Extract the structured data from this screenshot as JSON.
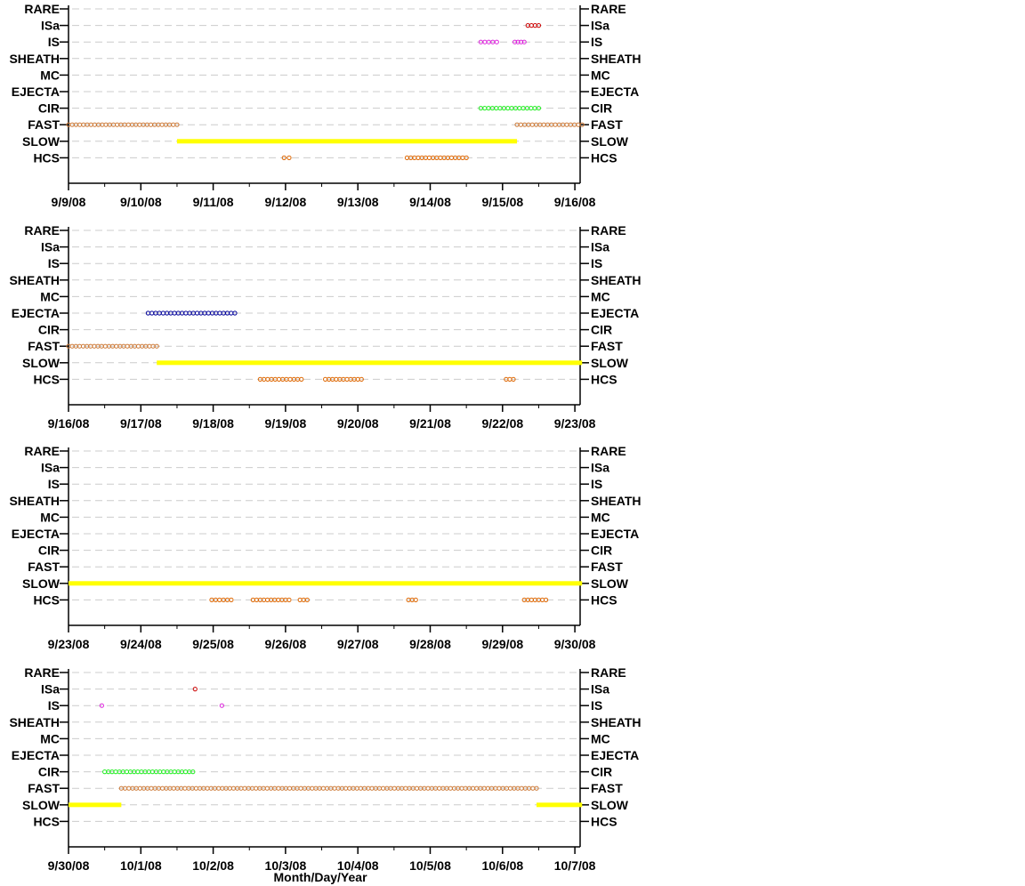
{
  "categories": [
    "RARE",
    "ISa",
    "IS",
    "SHEATH",
    "MC",
    "EJECTA",
    "CIR",
    "FAST",
    "SLOW",
    "HCS"
  ],
  "xlabel": "Month/Day/Year",
  "colors": {
    "SLOW": "#ffff00",
    "FAST": "#cc7733",
    "HCS": "#dd6600",
    "CIR": "#22ee22",
    "IS": "#dd22dd",
    "ISa": "#cc0000",
    "EJECTA": "#000099",
    "grid": "#cccccc"
  },
  "chart_data": [
    {
      "type": "scatter",
      "ylabels": [
        "RARE",
        "ISa",
        "IS",
        "SHEATH",
        "MC",
        "EJECTA",
        "CIR",
        "FAST",
        "SLOW",
        "HCS"
      ],
      "xlim": [
        0,
        7.1
      ],
      "x_tick_labels": [
        "9/9/08",
        "9/10/08",
        "9/11/08",
        "9/12/08",
        "9/13/08",
        "9/14/08",
        "9/15/08",
        "9/16/08"
      ],
      "intervals": [
        {
          "category": "FAST",
          "start": 0.0,
          "end": 1.5
        },
        {
          "category": "SLOW",
          "start": 1.5,
          "end": 6.2
        },
        {
          "category": "FAST",
          "start": 6.2,
          "end": 7.1
        },
        {
          "category": "HCS",
          "start": 2.98,
          "end": 3.05
        },
        {
          "category": "HCS",
          "start": 4.68,
          "end": 5.5
        },
        {
          "category": "CIR",
          "start": 5.7,
          "end": 6.5
        },
        {
          "category": "IS",
          "start": 5.7,
          "end": 5.92
        },
        {
          "category": "IS",
          "start": 6.17,
          "end": 6.3
        },
        {
          "category": "ISa",
          "start": 6.35,
          "end": 6.5
        }
      ]
    },
    {
      "type": "scatter",
      "ylabels": [
        "RARE",
        "ISa",
        "IS",
        "SHEATH",
        "MC",
        "EJECTA",
        "CIR",
        "FAST",
        "SLOW",
        "HCS"
      ],
      "xlim": [
        0,
        7.1
      ],
      "x_tick_labels": [
        "9/16/08",
        "9/17/08",
        "9/18/08",
        "9/19/08",
        "9/20/08",
        "9/21/08",
        "9/22/08",
        "9/23/08"
      ],
      "intervals": [
        {
          "category": "FAST",
          "start": 0.0,
          "end": 1.22
        },
        {
          "category": "SLOW",
          "start": 1.22,
          "end": 7.1
        },
        {
          "category": "EJECTA",
          "start": 1.1,
          "end": 2.3
        },
        {
          "category": "HCS",
          "start": 2.65,
          "end": 3.22
        },
        {
          "category": "HCS",
          "start": 3.55,
          "end": 4.05
        },
        {
          "category": "HCS",
          "start": 6.05,
          "end": 6.15
        }
      ]
    },
    {
      "type": "scatter",
      "ylabels": [
        "RARE",
        "ISa",
        "IS",
        "SHEATH",
        "MC",
        "EJECTA",
        "CIR",
        "FAST",
        "SLOW",
        "HCS"
      ],
      "xlim": [
        0,
        7.1
      ],
      "x_tick_labels": [
        "9/23/08",
        "9/24/08",
        "9/25/08",
        "9/26/08",
        "9/27/08",
        "9/28/08",
        "9/29/08",
        "9/30/08"
      ],
      "intervals": [
        {
          "category": "SLOW",
          "start": 0.0,
          "end": 7.1
        },
        {
          "category": "HCS",
          "start": 1.98,
          "end": 2.25
        },
        {
          "category": "HCS",
          "start": 2.55,
          "end": 3.05
        },
        {
          "category": "HCS",
          "start": 3.2,
          "end": 3.3
        },
        {
          "category": "HCS",
          "start": 4.7,
          "end": 4.8
        },
        {
          "category": "HCS",
          "start": 6.3,
          "end": 6.6
        }
      ]
    },
    {
      "type": "scatter",
      "ylabels": [
        "RARE",
        "ISa",
        "IS",
        "SHEATH",
        "MC",
        "EJECTA",
        "CIR",
        "FAST",
        "SLOW",
        "HCS"
      ],
      "xlim": [
        0,
        7.1
      ],
      "x_tick_labels": [
        "9/30/08",
        "10/1/08",
        "10/2/08",
        "10/3/08",
        "10/4/08",
        "10/5/08",
        "10/6/08",
        "10/7/08"
      ],
      "intervals": [
        {
          "category": "SLOW",
          "start": 0.0,
          "end": 0.73
        },
        {
          "category": "FAST",
          "start": 0.73,
          "end": 6.47
        },
        {
          "category": "SLOW",
          "start": 6.47,
          "end": 7.1
        },
        {
          "category": "CIR",
          "start": 0.5,
          "end": 1.72
        },
        {
          "category": "IS",
          "start": 0.46,
          "end": 0.46
        },
        {
          "category": "IS",
          "start": 2.12,
          "end": 2.12
        },
        {
          "category": "ISa",
          "start": 1.75,
          "end": 1.75
        }
      ]
    }
  ]
}
